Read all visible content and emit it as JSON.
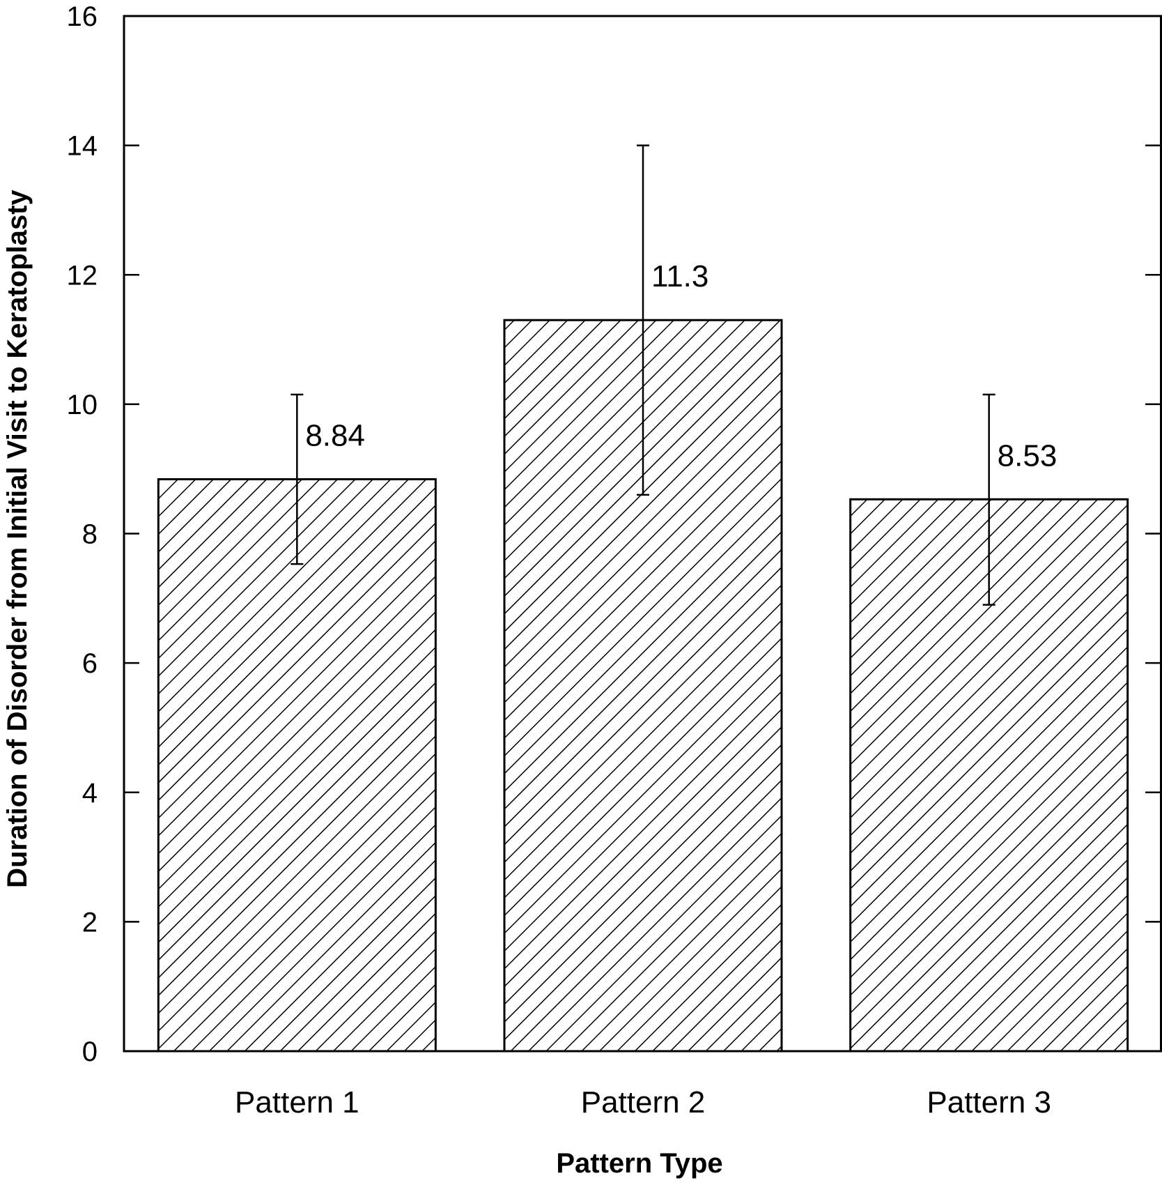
{
  "chart_data": {
    "type": "bar",
    "categories": [
      "Pattern 1",
      "Pattern 2",
      "Pattern 3"
    ],
    "values": [
      8.84,
      11.3,
      8.53
    ],
    "value_labels": [
      "8.84",
      "11.3",
      "8.53"
    ],
    "error_bars": [
      {
        "low": 7.53,
        "high": 10.15
      },
      {
        "low": 8.6,
        "high": 14.0
      },
      {
        "low": 6.9,
        "high": 10.15
      }
    ],
    "xlabel": "Pattern Type",
    "ylabel": "Duration of Disorder from Initial Visit to Keratoplasty",
    "ylim": [
      0,
      16
    ],
    "yticks": [
      0,
      2,
      4,
      6,
      8,
      10,
      12,
      14,
      16
    ],
    "ytick_labels": [
      "0",
      "2",
      "4",
      "6",
      "8",
      "10",
      "12",
      "14",
      "16"
    ],
    "bar_fill": "diagonal-hatch",
    "colors": {
      "bar_stroke": "#000000",
      "hatch": "#000000",
      "background": "#ffffff"
    },
    "grid": false,
    "legend": "none"
  }
}
